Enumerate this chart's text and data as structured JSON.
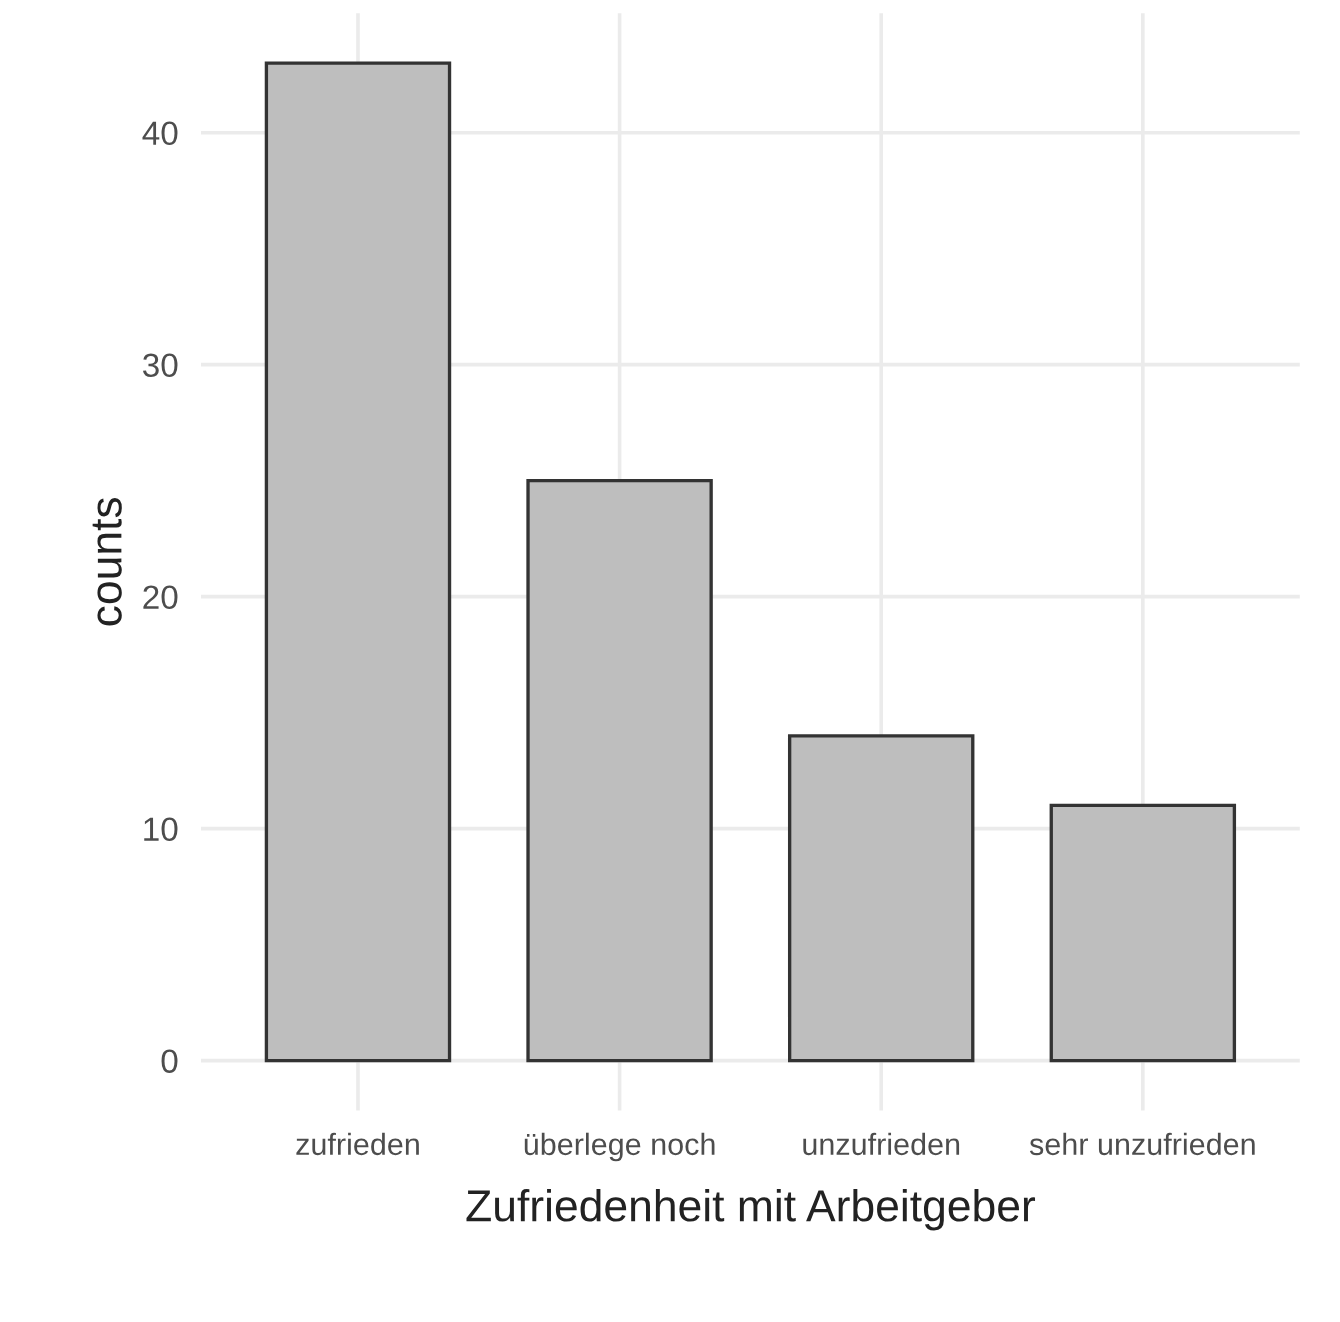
{
  "chart_data": {
    "type": "bar",
    "xlabel": "Zufriedenheit mit Arbeitgeber",
    "ylabel": "counts",
    "categories": [
      "zufrieden",
      "überlege noch",
      "unzufrieden",
      "sehr unzufrieden"
    ],
    "values": [
      43,
      25,
      14,
      11
    ],
    "color": "#bebebe",
    "ylim": [
      -2.15,
      45.15
    ],
    "yticks": [
      0,
      10,
      20,
      30,
      40
    ],
    "grid": true
  }
}
